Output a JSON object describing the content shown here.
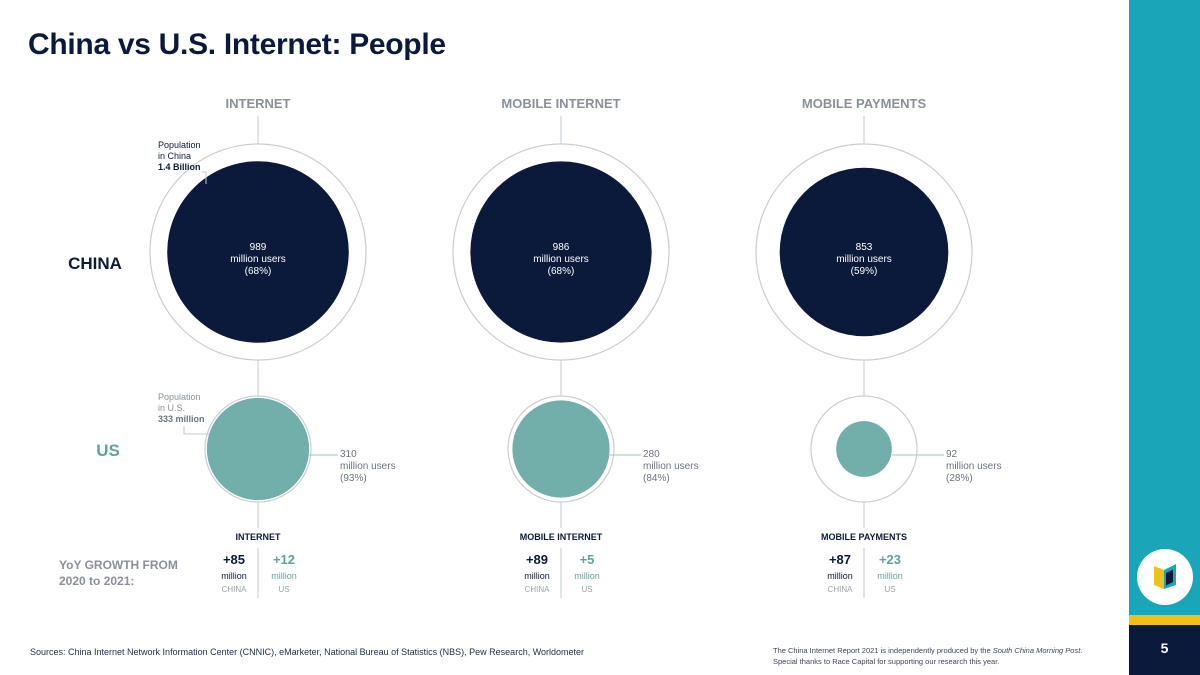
{
  "title": "China vs U.S. Internet: People",
  "page_number": "5",
  "colors": {
    "navy": "#0b1a3b",
    "teal_circle": "#72aeaa",
    "teal_text": "#5fa39d",
    "sidebar": "#1aa5b8",
    "gold": "#f2c01a",
    "gray_text": "#8a8f99"
  },
  "logo": {
    "icon": "book-icon"
  },
  "sources": "Sources: China Internet Network Information Center (CNNIC), eMarketer, National Bureau of Statistics (NBS), Pew Research, Worldometer",
  "credit": {
    "line1_before": "The China Internet Report 2021 is independently produced by the ",
    "line1_italic": "South China Morning Post",
    "line1_after": ".",
    "line2": "Special thanks to Race Capital for supporting our research this year."
  },
  "chart_data": {
    "type": "bubble",
    "row_labels": {
      "china": "CHINA",
      "us": "US"
    },
    "growth_label_line1": "YoY GROWTH FROM",
    "growth_label_line2": "2020 to 2021:",
    "population": {
      "china": {
        "line1": "Population",
        "line2": "in China",
        "value_label": "1.4 Billion",
        "value_millions": 1400
      },
      "us": {
        "line1": "Population",
        "line2": "in U.S.",
        "value_label": "333 million",
        "value_millions": 333
      }
    },
    "users_unit": "million users",
    "growth_unit": "million",
    "growth_china_label": "CHINA",
    "growth_us_label": "US",
    "categories": [
      {
        "name": "INTERNET",
        "growth_title": "INTERNET",
        "china": {
          "users": 989,
          "pct": "(68%)"
        },
        "us": {
          "users": 310,
          "pct": "(93%)"
        },
        "growth": {
          "china": "+85",
          "us": "+12"
        }
      },
      {
        "name": "MOBILE INTERNET",
        "growth_title": "MOBILE INTERNET",
        "china": {
          "users": 986,
          "pct": "(68%)"
        },
        "us": {
          "users": 280,
          "pct": "(84%)"
        },
        "growth": {
          "china": "+89",
          "us": "+5"
        }
      },
      {
        "name": "MOBILE PAYMENTS",
        "growth_title": "MOBILE PAYMENTS",
        "china": {
          "users": 853,
          "pct": "(59%)"
        },
        "us": {
          "users": 92,
          "pct": "(28%)"
        },
        "growth": {
          "china": "+87",
          "us": "+23"
        }
      }
    ]
  }
}
